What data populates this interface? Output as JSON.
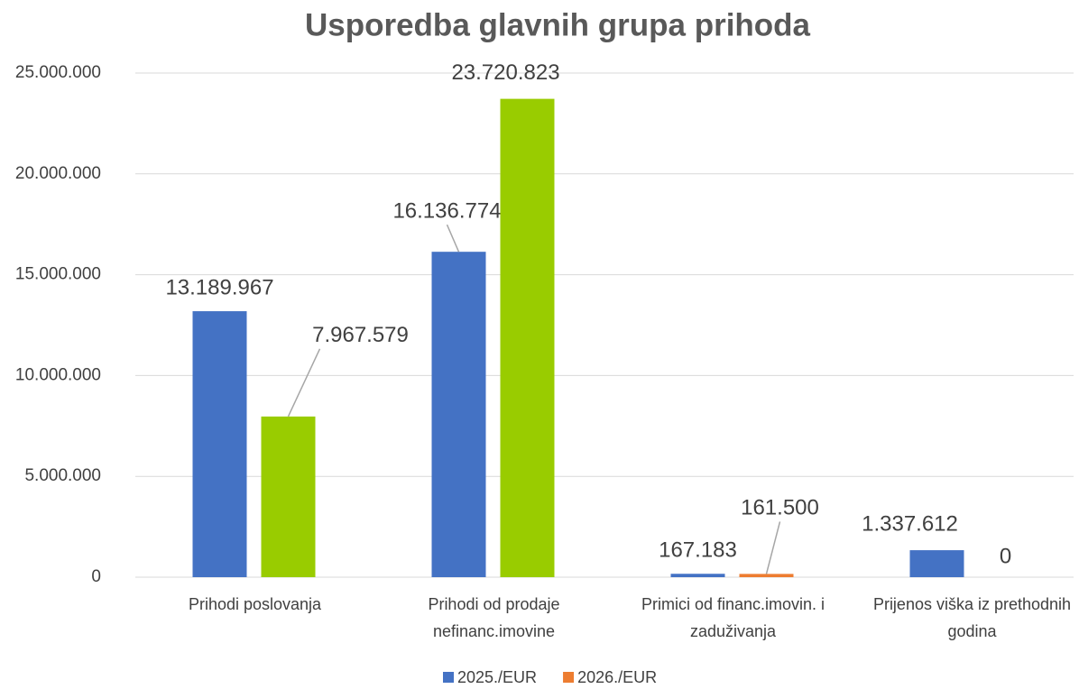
{
  "chart_data": {
    "type": "bar",
    "title": "Usporedba glavnih grupa prihoda",
    "categories": [
      "Prihodi poslovanja",
      "Prihodi od prodaje nefinanc.imovine",
      "Primici od financ.imovin. i zaduživanja",
      "Prijenos viška iz prethodnih godina"
    ],
    "series": [
      {
        "name": "2025./EUR",
        "color": "#4472c4",
        "point_colors": [
          "#4472c4",
          "#4472c4",
          "#4472c4",
          "#4472c4"
        ],
        "values": [
          13189967,
          16136774,
          167183,
          1337612
        ],
        "value_labels": [
          "13.189.967",
          "16.136.774",
          "167.183",
          "1.337.612"
        ]
      },
      {
        "name": "2026./EUR",
        "color": "#ed7d31",
        "point_colors": [
          "#99cc00",
          "#99cc00",
          "#ed7d31",
          "#ed7d31"
        ],
        "values": [
          7967579,
          23720823,
          161500,
          0
        ],
        "value_labels": [
          "7.967.579",
          "23.720.823",
          "161.500",
          "0"
        ]
      }
    ],
    "ylim": [
      0,
      25000000
    ],
    "yticks": [
      0,
      {
        "value": 5000000,
        "label": "5.000.000"
      },
      {
        "value": 10000000,
        "label": "10.000.000"
      },
      {
        "value": 15000000,
        "label": "15.000.000"
      },
      {
        "value": 20000000,
        "label": "20.000.000"
      },
      {
        "value": 25000000,
        "label": "25.000.000"
      }
    ],
    "grid": true,
    "legend": "bottom"
  }
}
